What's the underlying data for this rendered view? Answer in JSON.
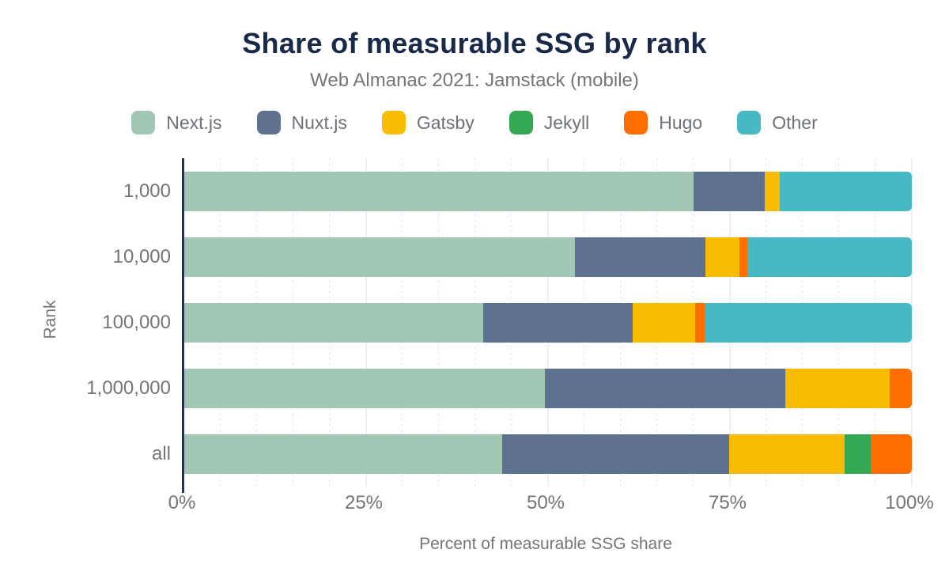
{
  "chart_data": {
    "type": "bar",
    "orientation": "horizontal",
    "stacked": true,
    "title": "Share of measurable SSG by rank",
    "subtitle": "Web Almanac 2021: Jamstack (mobile)",
    "xlabel": "Percent of measurable SSG share",
    "ylabel": "Rank",
    "categories": [
      "1,000",
      "10,000",
      "100,000",
      "1,000,000",
      "all"
    ],
    "series": [
      {
        "name": "Next.js",
        "color": "#a3c7b5",
        "values": [
          70.0,
          53.7,
          41.1,
          49.6,
          43.7
        ]
      },
      {
        "name": "Nuxt.js",
        "color": "#5f7190",
        "values": [
          9.8,
          17.9,
          20.5,
          33.0,
          31.2
        ]
      },
      {
        "name": "Gatsby",
        "color": "#fabc03",
        "values": [
          2.1,
          4.7,
          8.6,
          14.4,
          15.9
        ]
      },
      {
        "name": "Jekyll",
        "color": "#34a853",
        "values": [
          0,
          0,
          0,
          0,
          3.5
        ]
      },
      {
        "name": "Hugo",
        "color": "#fe6d00",
        "values": [
          0,
          1.1,
          1.3,
          3.0,
          5.7
        ]
      },
      {
        "name": "Other",
        "color": "#46b9c5",
        "values": [
          18.1,
          22.6,
          28.5,
          0,
          0
        ]
      }
    ],
    "x_ticks": [
      "0%",
      "25%",
      "50%",
      "75%",
      "100%"
    ],
    "xlim": [
      0,
      100
    ],
    "legend_position": "top",
    "grid": "vertical: minor every 5% (dotted), major every 25% (solid)"
  },
  "colors": {
    "title_text": "#19294a",
    "muted_text": "#757575",
    "axis_line": "#25314e",
    "grid_major": "#edeff2",
    "grid_minor": "#e4e7ea",
    "background": "#ffffff"
  }
}
